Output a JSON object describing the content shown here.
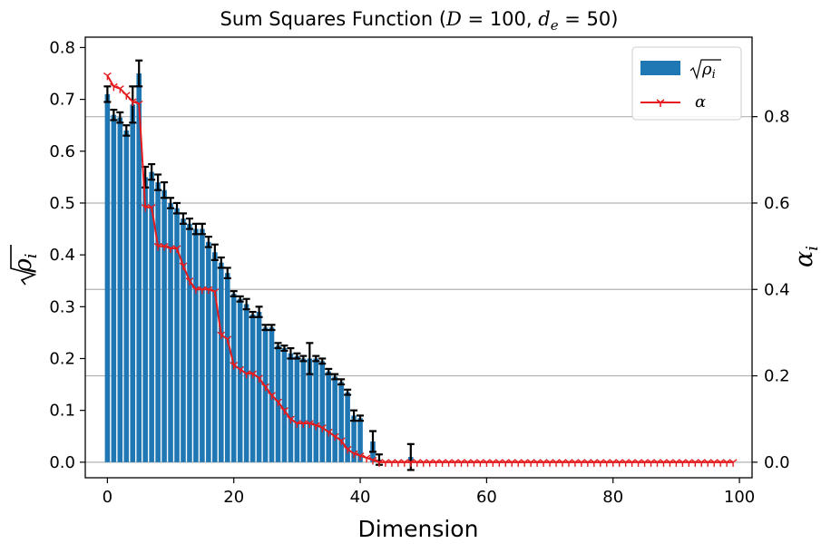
{
  "chart_data": {
    "type": "bar",
    "title": "Sum Squares Function (D = 100, d_e = 50)",
    "title_parts": {
      "prefix": "Sum Squares Function (",
      "d_symbol": "D",
      "d_eq": " = 100, ",
      "de_symbol": "d",
      "de_sub": "e",
      "de_eq": " = 50)"
    },
    "xlabel": "Dimension",
    "ylabel_left": "√ρi",
    "ylabel_left_parts": {
      "base": "ρ",
      "sub": "i"
    },
    "ylabel_right": "αi",
    "ylabel_right_parts": {
      "base": "α",
      "sub": "i"
    },
    "xlim": [
      -3.5,
      102
    ],
    "ylim_left": [
      -0.03,
      0.82
    ],
    "ylim_right": [
      -0.036,
      0.984
    ],
    "xticks": [
      0,
      20,
      40,
      60,
      80,
      100
    ],
    "xtick_labels": [
      "0",
      "20",
      "40",
      "60",
      "80",
      "100"
    ],
    "yticks_left": [
      0.0,
      0.1,
      0.2,
      0.3,
      0.4,
      0.5,
      0.6,
      0.7,
      0.8
    ],
    "ytick_labels_left": [
      "0.0",
      "0.1",
      "0.2",
      "0.3",
      "0.4",
      "0.5",
      "0.6",
      "0.7",
      "0.8"
    ],
    "yticks_right": [
      0.0,
      0.2,
      0.4,
      0.6,
      0.8
    ],
    "ytick_labels_right": [
      "0.0",
      "0.2",
      "0.4",
      "0.6",
      "0.8"
    ],
    "grid": "horizontal at right-axis ticks",
    "legend_placement": "top-right",
    "legend": [
      {
        "label": "√ρi",
        "base": "ρ",
        "sub": "i",
        "kind": "bar"
      },
      {
        "label": "α",
        "base": "α",
        "sub": "",
        "kind": "line"
      }
    ],
    "colors": {
      "bar": "#1f77b4",
      "line": "#e41a1c",
      "errorbar": "#000000",
      "grid": "#b0b0b0"
    },
    "series": [
      {
        "name": "√ρi",
        "kind": "bar",
        "x": [
          0,
          1,
          2,
          3,
          4,
          5,
          6,
          7,
          8,
          9,
          10,
          11,
          12,
          13,
          14,
          15,
          16,
          17,
          18,
          19,
          20,
          21,
          22,
          23,
          24,
          25,
          26,
          27,
          28,
          29,
          30,
          31,
          32,
          33,
          34,
          35,
          36,
          37,
          38,
          39,
          40,
          41,
          42,
          43,
          44,
          45,
          46,
          47,
          48,
          49,
          50,
          51,
          52,
          53,
          54,
          55,
          56,
          57,
          58,
          59,
          60,
          61,
          62,
          63,
          64,
          65,
          66,
          67,
          68,
          69,
          70,
          71,
          72,
          73,
          74,
          75,
          76,
          77,
          78,
          79,
          80,
          81,
          82,
          83,
          84,
          85,
          86,
          87,
          88,
          89,
          90,
          91,
          92,
          93,
          94,
          95,
          96,
          97,
          98,
          99
        ],
        "values": [
          0.71,
          0.67,
          0.665,
          0.64,
          0.69,
          0.75,
          0.55,
          0.56,
          0.54,
          0.525,
          0.5,
          0.49,
          0.47,
          0.46,
          0.45,
          0.45,
          0.425,
          0.405,
          0.385,
          0.365,
          0.325,
          0.315,
          0.305,
          0.285,
          0.29,
          0.26,
          0.26,
          0.225,
          0.22,
          0.21,
          0.205,
          0.2,
          0.2,
          0.2,
          0.195,
          0.175,
          0.165,
          0.155,
          0.135,
          0.09,
          0.085,
          0.0,
          0.04,
          0.005,
          0.0,
          0.0,
          0.0,
          0.0,
          0.01,
          0.0,
          0,
          0,
          0,
          0,
          0,
          0,
          0,
          0,
          0,
          0,
          0,
          0,
          0,
          0,
          0,
          0,
          0,
          0,
          0,
          0,
          0,
          0,
          0,
          0,
          0,
          0,
          0,
          0,
          0,
          0,
          0,
          0,
          0,
          0,
          0,
          0,
          0,
          0,
          0,
          0,
          0,
          0,
          0,
          0,
          0,
          0,
          0,
          0,
          0,
          0
        ],
        "errors": [
          0.015,
          0.01,
          0.01,
          0.01,
          0.035,
          0.025,
          0.02,
          0.015,
          0.015,
          0.015,
          0.01,
          0.01,
          0.01,
          0.01,
          0.01,
          0.01,
          0.01,
          0.015,
          0.01,
          0.01,
          0.005,
          0.005,
          0.01,
          0.005,
          0.01,
          0.005,
          0.005,
          0.005,
          0.005,
          0.01,
          0.005,
          0.005,
          0.03,
          0.005,
          0.005,
          0.005,
          0.005,
          0.005,
          0.005,
          0.01,
          0.005,
          0.0,
          0.02,
          0.01,
          0.0,
          0.0,
          0.0,
          0.0,
          0.025,
          0.0,
          0,
          0,
          0,
          0,
          0,
          0,
          0,
          0,
          0,
          0,
          0,
          0,
          0,
          0,
          0,
          0,
          0,
          0,
          0,
          0,
          0,
          0,
          0,
          0,
          0,
          0,
          0,
          0,
          0,
          0,
          0,
          0,
          0,
          0,
          0,
          0,
          0,
          0,
          0,
          0,
          0,
          0,
          0,
          0,
          0,
          0,
          0,
          0,
          0,
          0
        ]
      },
      {
        "name": "α",
        "kind": "line",
        "axis": "right",
        "x": [
          0,
          1,
          2,
          3,
          4,
          5,
          6,
          7,
          8,
          9,
          10,
          11,
          12,
          13,
          14,
          15,
          16,
          17,
          18,
          19,
          20,
          21,
          22,
          23,
          24,
          25,
          26,
          27,
          28,
          29,
          30,
          31,
          32,
          33,
          34,
          35,
          36,
          37,
          38,
          39,
          40,
          41,
          42,
          43,
          44,
          45,
          46,
          47,
          48,
          49,
          50,
          51,
          52,
          53,
          54,
          55,
          56,
          57,
          58,
          59,
          60,
          61,
          62,
          63,
          64,
          65,
          66,
          67,
          68,
          69,
          70,
          71,
          72,
          73,
          74,
          75,
          76,
          77,
          78,
          79,
          80,
          81,
          82,
          83,
          84,
          85,
          86,
          87,
          88,
          89,
          90,
          91,
          92,
          93,
          94,
          95,
          96,
          97,
          98,
          99
        ],
        "values": [
          0.895,
          0.87,
          0.865,
          0.85,
          0.835,
          0.83,
          0.59,
          0.59,
          0.5,
          0.5,
          0.495,
          0.495,
          0.455,
          0.42,
          0.4,
          0.4,
          0.4,
          0.395,
          0.295,
          0.285,
          0.225,
          0.215,
          0.205,
          0.205,
          0.195,
          0.175,
          0.155,
          0.14,
          0.12,
          0.1,
          0.09,
          0.09,
          0.09,
          0.085,
          0.08,
          0.07,
          0.06,
          0.05,
          0.03,
          0.02,
          0.015,
          0.01,
          0.005,
          0.0,
          0.0,
          0,
          0,
          0,
          0,
          0,
          0,
          0,
          0,
          0,
          0,
          0,
          0,
          0,
          0,
          0,
          0,
          0,
          0,
          0,
          0,
          0,
          0,
          0,
          0,
          0,
          0,
          0,
          0,
          0,
          0,
          0,
          0,
          0,
          0,
          0,
          0,
          0,
          0,
          0,
          0,
          0,
          0,
          0,
          0,
          0,
          0,
          0,
          0,
          0,
          0,
          0,
          0,
          0,
          0,
          0
        ]
      }
    ]
  }
}
